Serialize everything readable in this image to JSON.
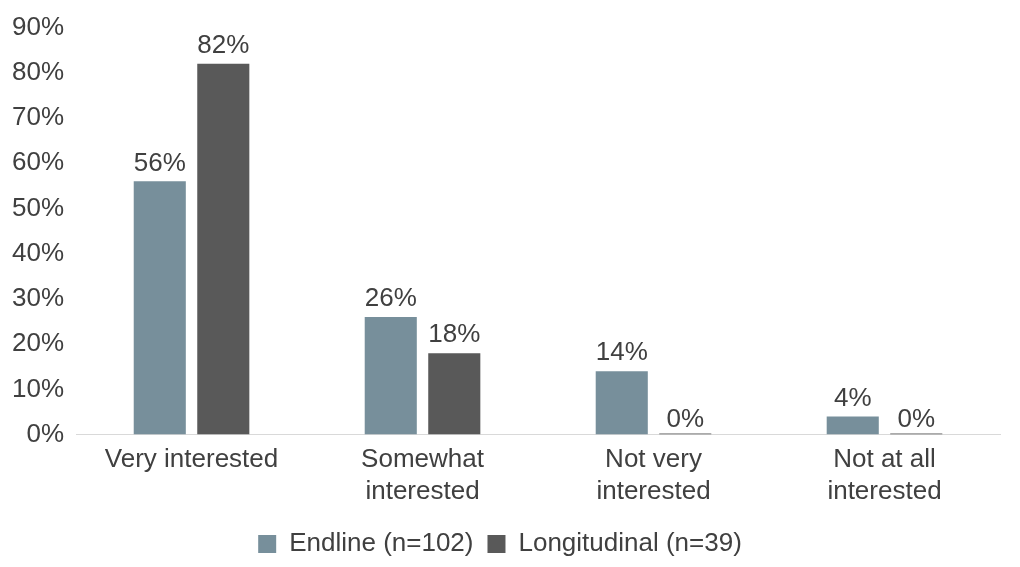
{
  "chart_data": {
    "type": "bar",
    "categories": [
      "Very interested",
      "Somewhat interested",
      "Not very interested",
      "Not at all interested"
    ],
    "series": [
      {
        "name": "Endline (n=102)",
        "color": "#778f9b",
        "values": [
          56,
          26,
          14,
          4
        ],
        "value_labels": [
          "56%",
          "26%",
          "14%",
          "4%"
        ]
      },
      {
        "name": "Longitudinal (n=39)",
        "color": "#595959",
        "values": [
          82,
          18,
          0,
          0
        ],
        "value_labels": [
          "82%",
          "18%",
          "0%",
          "0%"
        ]
      }
    ],
    "ylim": [
      0,
      90
    ],
    "yticks": [
      {
        "value": 0,
        "label": "0%"
      },
      {
        "value": 10,
        "label": "10%"
      },
      {
        "value": 20,
        "label": "20%"
      },
      {
        "value": 30,
        "label": "30%"
      },
      {
        "value": 40,
        "label": "40%"
      },
      {
        "value": 50,
        "label": "50%"
      },
      {
        "value": 60,
        "label": "60%"
      },
      {
        "value": 70,
        "label": "70%"
      },
      {
        "value": 80,
        "label": "80%"
      },
      {
        "value": 90,
        "label": "90%"
      }
    ],
    "grid": false,
    "legend": "bottom"
  }
}
